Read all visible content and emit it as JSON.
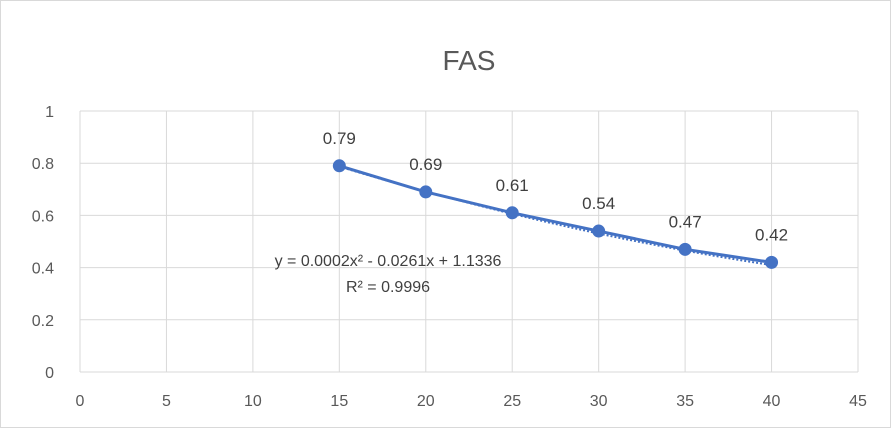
{
  "chart_data": {
    "type": "scatter",
    "title": "FAS",
    "xlabel": "",
    "ylabel": "",
    "xlim": [
      0,
      45
    ],
    "ylim": [
      0,
      1
    ],
    "x_ticks": [
      "0",
      "5",
      "10",
      "15",
      "20",
      "25",
      "30",
      "35",
      "40",
      "45"
    ],
    "y_ticks": [
      "0",
      "0.2",
      "0.4",
      "0.6",
      "0.8",
      "1"
    ],
    "grid": true,
    "legend": "none",
    "series": [
      {
        "x": [
          15,
          20,
          25,
          30,
          35,
          40
        ],
        "y": [
          0.79,
          0.69,
          0.61,
          0.54,
          0.47,
          0.42
        ],
        "labels": [
          "0.79",
          "0.69",
          "0.61",
          "0.54",
          "0.47",
          "0.42"
        ],
        "color": "#4472C4"
      }
    ],
    "trendline": {
      "type": "polynomial",
      "coefficients": [
        0.0002,
        -0.0261,
        1.1336
      ],
      "equation": "y = 0.0002x² - 0.0261x + 1.1336",
      "r_squared": "R² = 0.9996",
      "color": "#4472C4"
    },
    "gridline_color": "#d9d9d9",
    "text_color": "#595959"
  }
}
